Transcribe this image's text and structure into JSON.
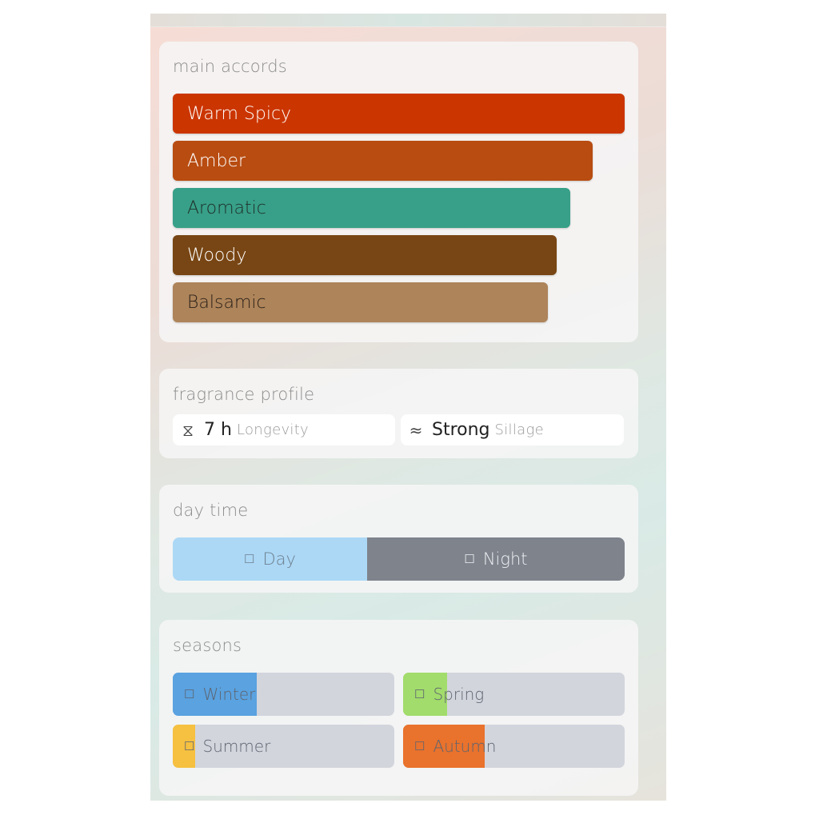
{
  "accords": {
    "title": "main accords",
    "items": [
      {
        "label": "Warm Spicy",
        "strength": 100,
        "color": "#cb3500",
        "text_color": "#ffffff"
      },
      {
        "label": "Amber",
        "strength": 93,
        "color": "#b84c11",
        "text_color": "#ffffff"
      },
      {
        "label": "Aromatic",
        "strength": 88,
        "color": "#38a088",
        "text_color": "#1e2e2a"
      },
      {
        "label": "Woody",
        "strength": 85,
        "color": "#784614",
        "text_color": "#ffffff"
      },
      {
        "label": "Balsamic",
        "strength": 83,
        "color": "#ae845a",
        "text_color": "#2a2018"
      }
    ]
  },
  "profile": {
    "title": "fragrance profile",
    "longevity": {
      "icon": "hourglass-icon",
      "value": "7 h",
      "label": "Longevity"
    },
    "sillage": {
      "icon": "waves-icon",
      "value": "Strong",
      "label": "Sillage"
    }
  },
  "daytime": {
    "title": "day time",
    "day": {
      "label": "Day",
      "icon": "sun-icon",
      "share": 43,
      "color": "#acd8f6",
      "text_color": "#6d7f8e"
    },
    "night": {
      "label": "Night",
      "icon": "moon-icon",
      "share": 57,
      "color": "#7e838c",
      "text_color": "#eef0f3"
    }
  },
  "seasons": {
    "title": "seasons",
    "items": [
      {
        "label": "Winter",
        "icon": "snowflake-icon",
        "level": 38,
        "color": "#5aa2e0"
      },
      {
        "label": "Spring",
        "icon": "flower-icon",
        "level": 20,
        "color": "#a2dc6c"
      },
      {
        "label": "Summer",
        "icon": "sun-icon",
        "level": 10,
        "color": "#f6c040"
      },
      {
        "label": "Autumn",
        "icon": "leaf-icon",
        "level": 37,
        "color": "#e9722c"
      }
    ]
  }
}
